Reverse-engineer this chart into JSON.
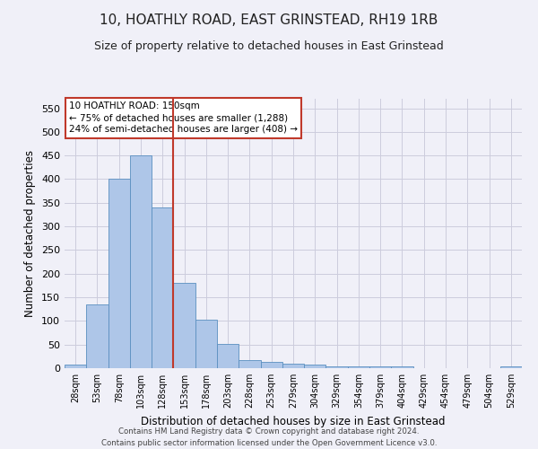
{
  "title": "10, HOATHLY ROAD, EAST GRINSTEAD, RH19 1RB",
  "subtitle": "Size of property relative to detached houses in East Grinstead",
  "xlabel": "Distribution of detached houses by size in East Grinstead",
  "ylabel": "Number of detached properties",
  "categories": [
    "28sqm",
    "53sqm",
    "78sqm",
    "103sqm",
    "128sqm",
    "153sqm",
    "178sqm",
    "203sqm",
    "228sqm",
    "253sqm",
    "279sqm",
    "304sqm",
    "329sqm",
    "354sqm",
    "379sqm",
    "404sqm",
    "429sqm",
    "454sqm",
    "479sqm",
    "504sqm",
    "529sqm"
  ],
  "values": [
    8,
    135,
    400,
    450,
    340,
    180,
    103,
    52,
    17,
    13,
    10,
    8,
    4,
    4,
    3,
    3,
    0,
    0,
    0,
    0,
    3
  ],
  "bar_color": "#aec6e8",
  "bar_edge_color": "#5a8fc0",
  "vline_index": 4.5,
  "vline_color": "#c0392b",
  "annotation_line1": "10 HOATHLY ROAD: 150sqm",
  "annotation_line2": "← 75% of detached houses are smaller (1,288)",
  "annotation_line3": "24% of semi-detached houses are larger (408) →",
  "annotation_box_color": "#ffffff",
  "annotation_box_edge": "#c0392b",
  "ylim": [
    0,
    570
  ],
  "yticks": [
    0,
    50,
    100,
    150,
    200,
    250,
    300,
    350,
    400,
    450,
    500,
    550
  ],
  "footer1": "Contains HM Land Registry data © Crown copyright and database right 2024.",
  "footer2": "Contains public sector information licensed under the Open Government Licence v3.0.",
  "background_color": "#f0f0f8",
  "grid_color": "#ccccdd",
  "title_fontsize": 11,
  "subtitle_fontsize": 9
}
